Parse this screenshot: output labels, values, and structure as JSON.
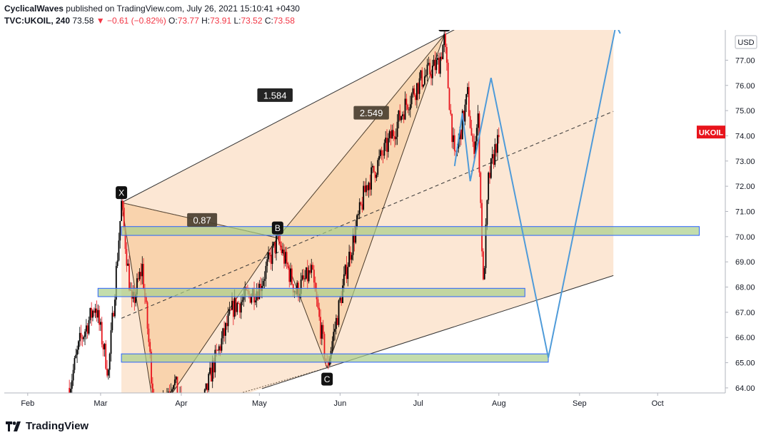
{
  "header": {
    "author": "CyclicalWaves",
    "published_text": "published on TradingView.com, July 26, 2021 15:10:41 +0430",
    "symbol": "TVC:UKOIL, 240",
    "last": "73.58",
    "change": "−0.61 (−0.82%)",
    "o_label": "O:",
    "o_val": "73.77",
    "h_label": "H:",
    "h_val": "73.91",
    "l_label": "L:",
    "l_val": "73.52",
    "c_label": "C:",
    "c_val": "73.58"
  },
  "footer": {
    "brand": "TradingView"
  },
  "colors": {
    "up": "#000000",
    "down": "#e8141c",
    "channel_fill": "#fbe3cd",
    "pattern_fill": "#f6c38c",
    "zone_fill": "#a9cf8a",
    "zone_stroke": "#2962ff",
    "projection": "#4f9bd9",
    "price_badge": "#e8141c"
  },
  "chart_data": {
    "type": "candlestick",
    "currency_label": "USD",
    "price_badge": "UKOIL",
    "last_price": 73.58,
    "ylim": [
      63.8,
      78.2
    ],
    "y_ticks": [
      "64.00",
      "65.00",
      "66.00",
      "67.00",
      "68.00",
      "69.00",
      "70.00",
      "71.00",
      "72.00",
      "73.00",
      "74.00",
      "75.00",
      "76.00",
      "77.00"
    ],
    "x_labels": [
      "Feb",
      "Mar",
      "Apr",
      "May",
      "Jun",
      "Jul",
      "Aug",
      "Sep",
      "Oct"
    ],
    "x_label_days": [
      0,
      28,
      59,
      89,
      120,
      150,
      181,
      212,
      242
    ],
    "xlim_days": [
      -9,
      268
    ],
    "pattern_points": [
      {
        "label": "X",
        "day": 36,
        "price": 71.35
      },
      {
        "label": "B",
        "day": 96,
        "price": 69.95
      },
      {
        "label": "C",
        "day": 115,
        "price": 64.8
      },
      {
        "label": "D",
        "day": 160,
        "price": 78.0
      }
    ],
    "ratios": [
      {
        "label": "1.584",
        "day": 95,
        "price": 75.6
      },
      {
        "label": "2.549",
        "day": 132,
        "price": 74.9
      },
      {
        "label": "0.87",
        "day": 67,
        "price": 70.65
      }
    ],
    "support_zones": [
      {
        "d1": 36,
        "d2": 258,
        "p_top": 70.4,
        "p_bot": 70.05
      },
      {
        "d1": 27,
        "d2": 191,
        "p_top": 67.95,
        "p_bot": 67.62
      },
      {
        "d1": 36,
        "d2": 200,
        "p_top": 65.35,
        "p_bot": 65.02
      }
    ],
    "projection_path": [
      {
        "day": 164,
        "price": 72.8
      },
      {
        "day": 167,
        "price": 74.9
      },
      {
        "day": 170,
        "price": 72.2
      },
      {
        "day": 178,
        "price": 76.3
      },
      {
        "day": 200,
        "price": 65.2
      },
      {
        "day": 226,
        "price": 78.4
      }
    ],
    "candles": {
      "seed": 7,
      "anchors": [
        {
          "day": 16,
          "price": 64.0
        },
        {
          "day": 20,
          "price": 65.8
        },
        {
          "day": 26,
          "price": 67.3
        },
        {
          "day": 31,
          "price": 64.6
        },
        {
          "day": 36,
          "price": 71.3
        },
        {
          "day": 40,
          "price": 67.2
        },
        {
          "day": 44,
          "price": 68.8
        },
        {
          "day": 49,
          "price": 62.8
        },
        {
          "day": 56,
          "price": 64.4
        },
        {
          "day": 63,
          "price": 61.6
        },
        {
          "day": 71,
          "price": 64.8
        },
        {
          "day": 79,
          "price": 67.2
        },
        {
          "day": 89,
          "price": 68.0
        },
        {
          "day": 96,
          "price": 69.9
        },
        {
          "day": 103,
          "price": 67.8
        },
        {
          "day": 109,
          "price": 68.6
        },
        {
          "day": 115,
          "price": 64.8
        },
        {
          "day": 123,
          "price": 69.0
        },
        {
          "day": 130,
          "price": 72.0
        },
        {
          "day": 138,
          "price": 73.6
        },
        {
          "day": 145,
          "price": 75.2
        },
        {
          "day": 151,
          "price": 76.2
        },
        {
          "day": 158,
          "price": 76.9
        },
        {
          "day": 160,
          "price": 77.8
        },
        {
          "day": 164,
          "price": 73.0
        },
        {
          "day": 169,
          "price": 75.6
        },
        {
          "day": 171,
          "price": 73.4
        },
        {
          "day": 173,
          "price": 74.6
        },
        {
          "day": 175,
          "price": 68.0
        },
        {
          "day": 177,
          "price": 72.2
        },
        {
          "day": 180,
          "price": 73.7
        },
        {
          "day": 181,
          "price": 73.58
        }
      ]
    }
  }
}
